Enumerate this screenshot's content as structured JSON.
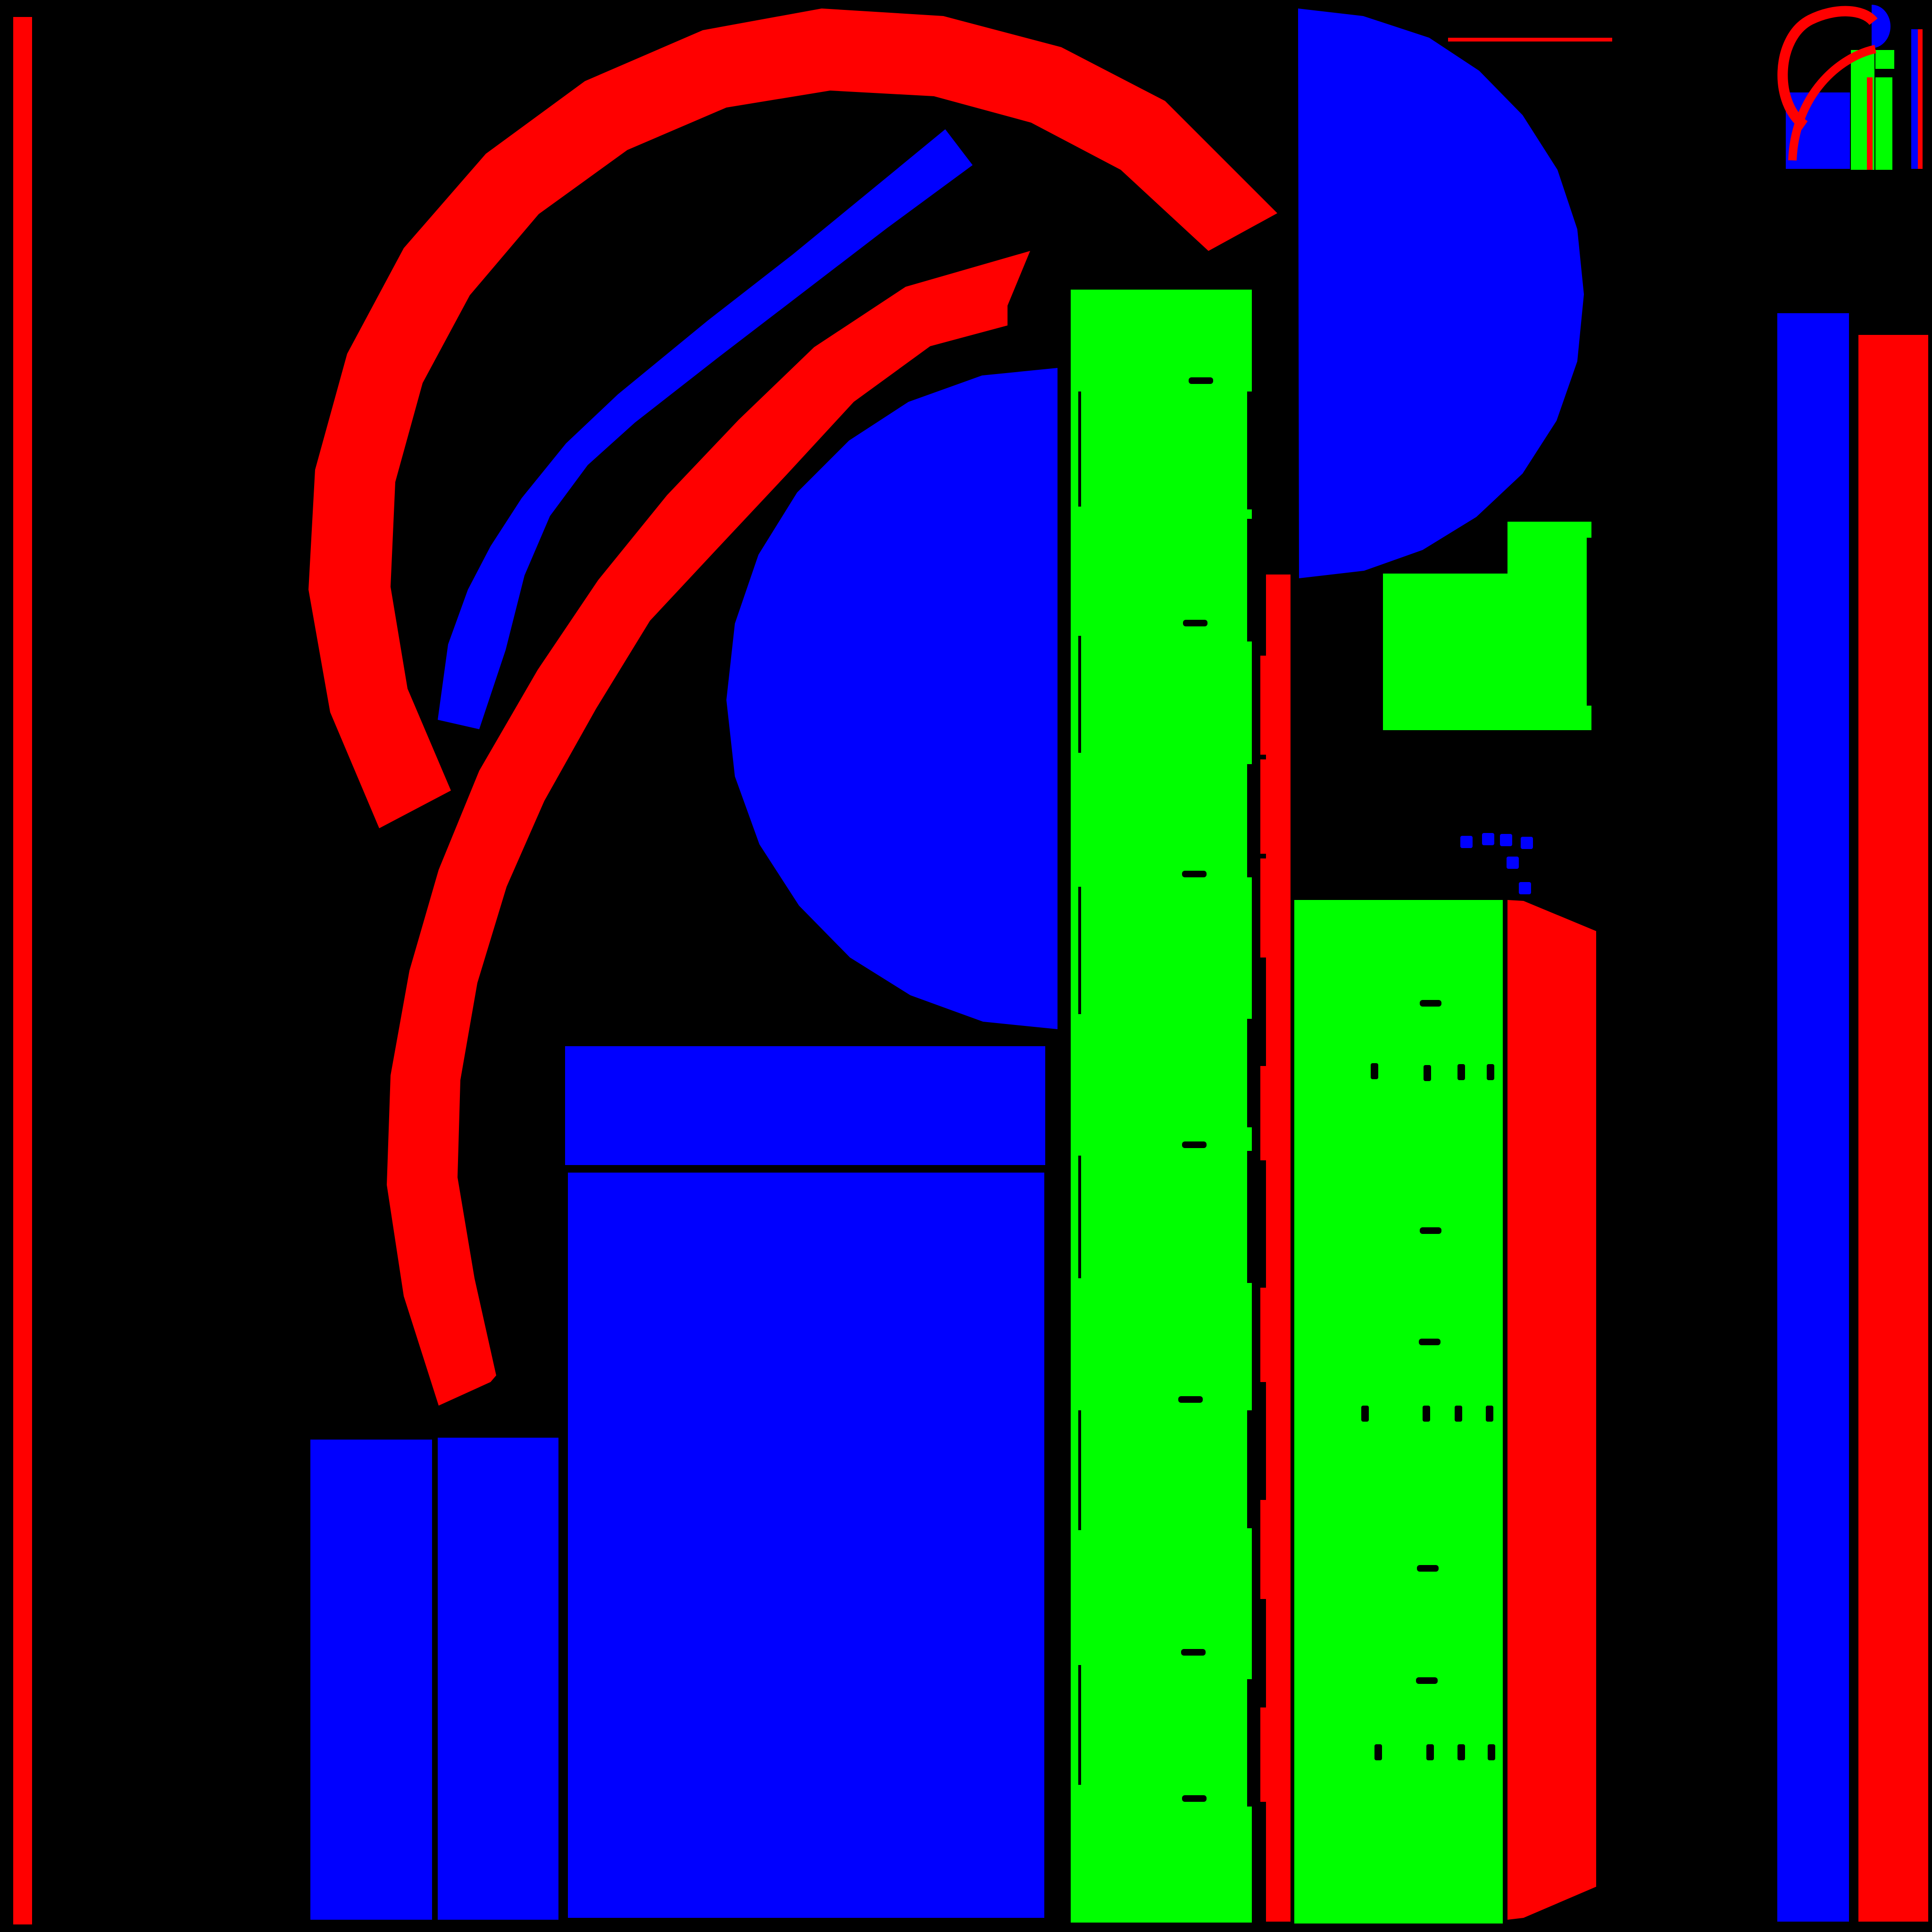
{
  "colors": {
    "background": "#000000",
    "red": "#ff0000",
    "green": "#00ff00",
    "blue": "#0000ff"
  }
}
